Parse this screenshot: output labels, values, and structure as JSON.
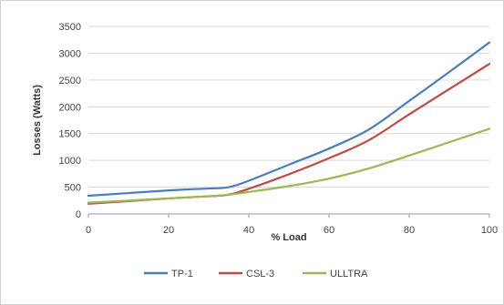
{
  "chart_data": {
    "type": "line",
    "xlabel": "% Load",
    "ylabel": "Losses (Watts)",
    "xlim": [
      0,
      100
    ],
    "ylim": [
      0,
      3500
    ],
    "x_ticks": [
      0,
      20,
      40,
      60,
      80,
      100
    ],
    "y_ticks": [
      0,
      500,
      1000,
      1500,
      2000,
      2500,
      3000,
      3500
    ],
    "x_tick_labels": [
      "0",
      "20",
      "40",
      "60",
      "80",
      "100"
    ],
    "y_tick_labels": [
      "0",
      "500",
      "1000",
      "1500",
      "2000",
      "2500",
      "3000",
      "3500"
    ],
    "grid": "horizontal",
    "legend_position": "bottom",
    "series": [
      {
        "name": "TP-1",
        "color": "#4a7ebb",
        "points": [
          [
            0,
            340
          ],
          [
            10,
            390
          ],
          [
            20,
            440
          ],
          [
            25,
            460
          ],
          [
            30,
            475
          ],
          [
            35,
            500
          ],
          [
            40,
            620
          ],
          [
            50,
            920
          ],
          [
            60,
            1220
          ],
          [
            70,
            1580
          ],
          [
            80,
            2110
          ],
          [
            90,
            2650
          ],
          [
            100,
            3200
          ]
        ]
      },
      {
        "name": "CSL-3",
        "color": "#be4b48",
        "points": [
          [
            0,
            190
          ],
          [
            10,
            240
          ],
          [
            20,
            290
          ],
          [
            30,
            330
          ],
          [
            35,
            360
          ],
          [
            40,
            470
          ],
          [
            50,
            740
          ],
          [
            60,
            1040
          ],
          [
            70,
            1380
          ],
          [
            80,
            1860
          ],
          [
            90,
            2330
          ],
          [
            100,
            2800
          ]
        ]
      },
      {
        "name": "ULLTRA",
        "color": "#98b954",
        "points": [
          [
            0,
            210
          ],
          [
            10,
            250
          ],
          [
            20,
            290
          ],
          [
            30,
            330
          ],
          [
            35,
            360
          ],
          [
            40,
            410
          ],
          [
            50,
            520
          ],
          [
            60,
            660
          ],
          [
            70,
            850
          ],
          [
            80,
            1090
          ],
          [
            90,
            1340
          ],
          [
            100,
            1590
          ]
        ]
      }
    ]
  }
}
